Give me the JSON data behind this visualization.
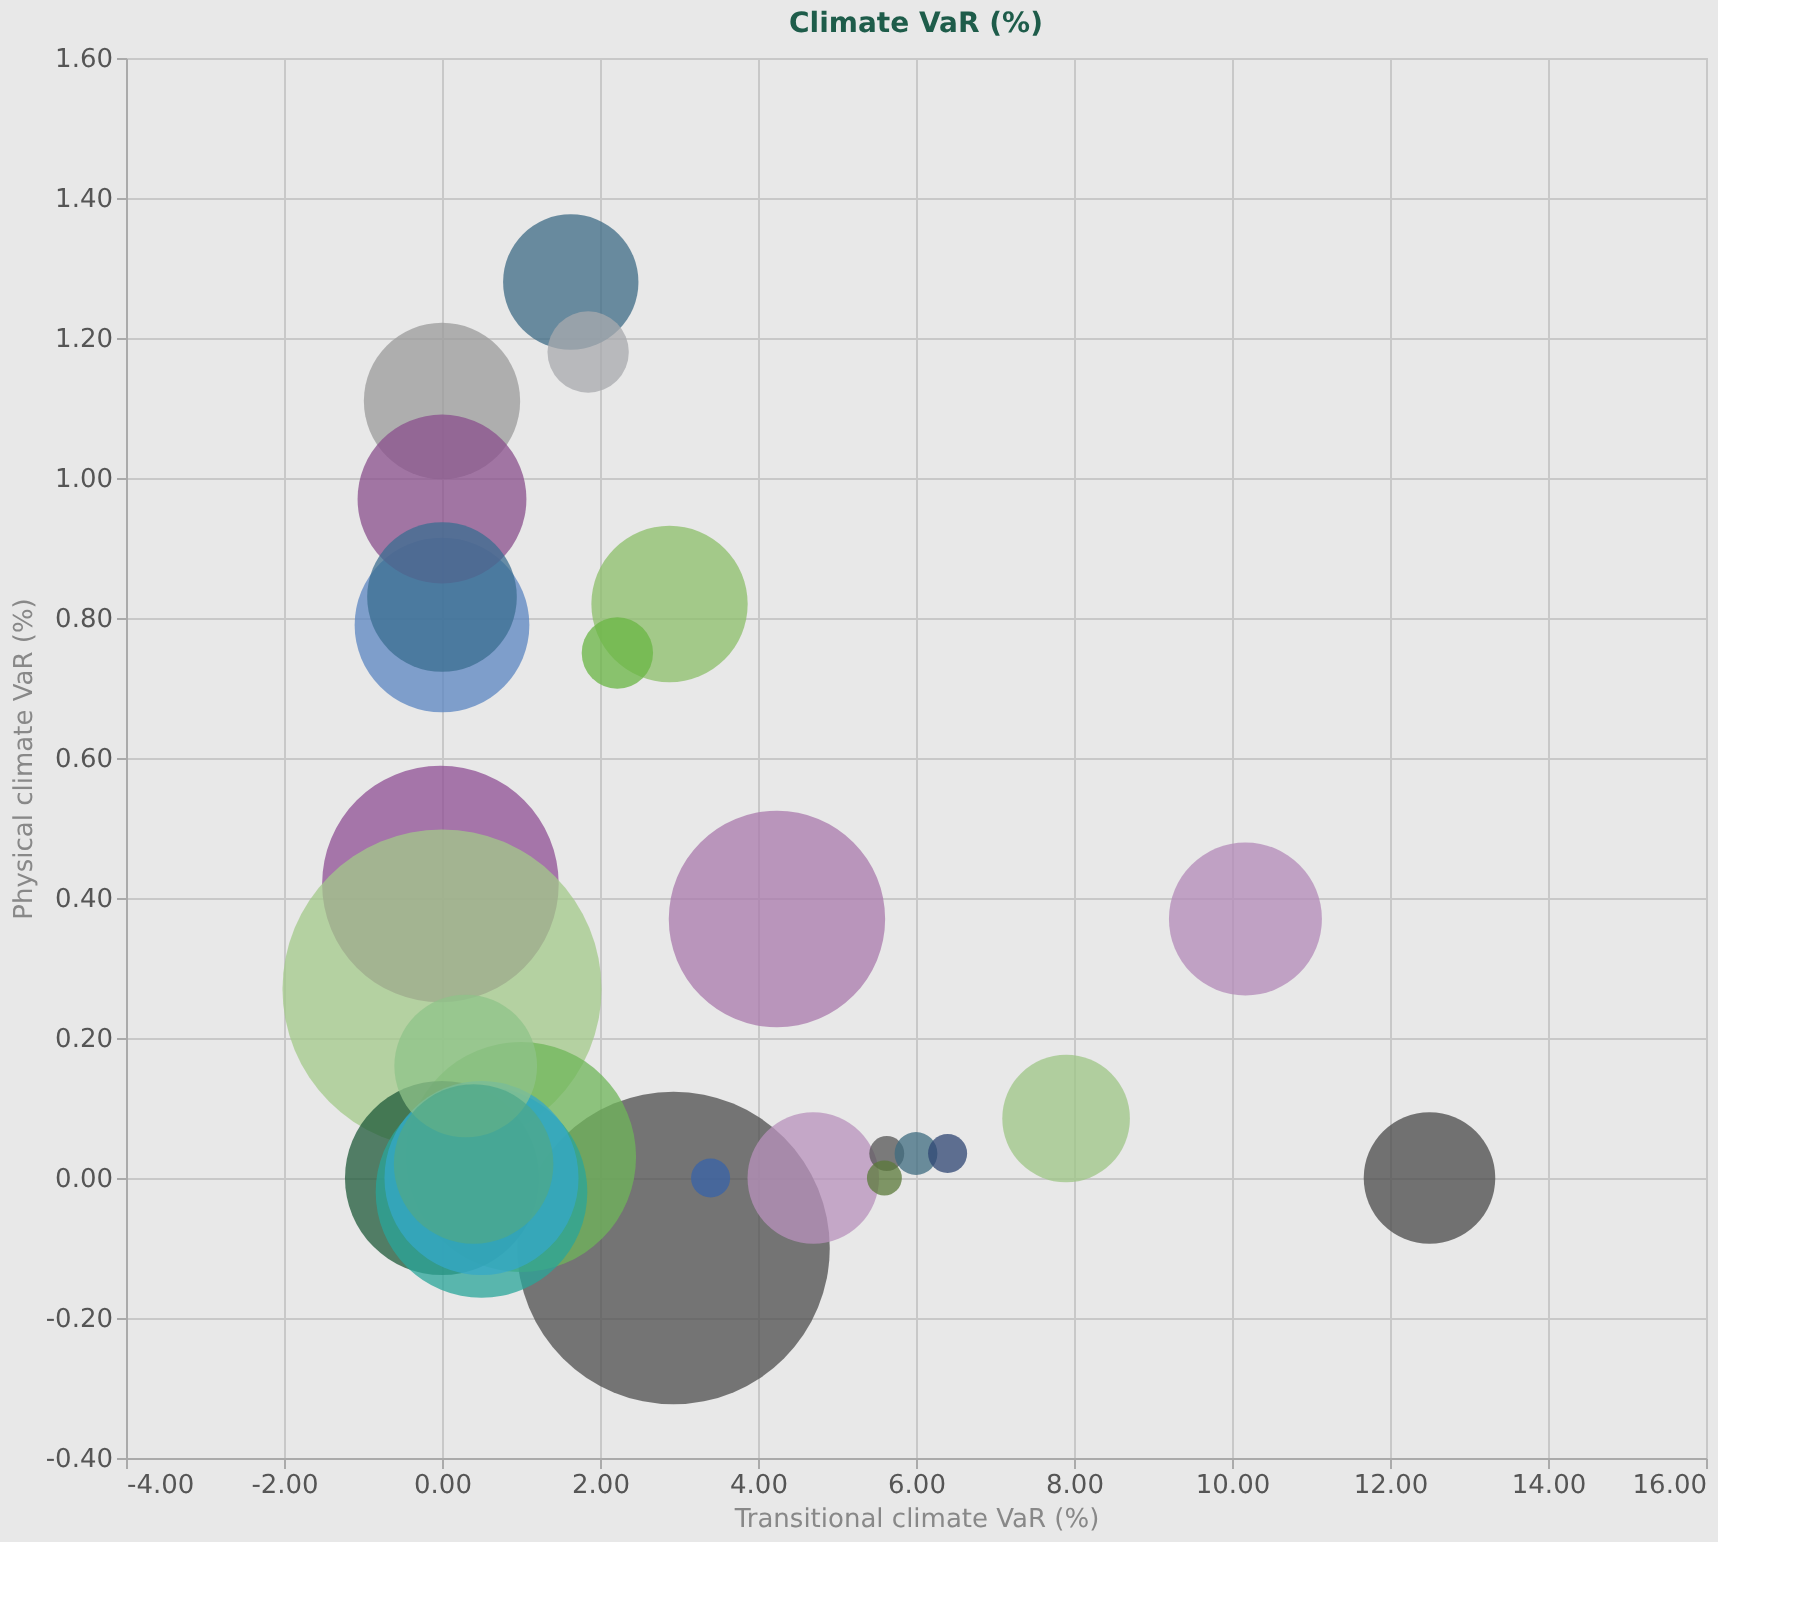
{
  "chart_data": {
    "type": "bubble",
    "title": "Climate VaR (%)",
    "xlabel": "Transitional climate VaR (%)",
    "ylabel": "Physical climate VaR (%)",
    "x": [
      -0.02,
      2.93,
      0.0,
      1.0,
      0.0,
      0.5,
      0.5,
      0.3,
      0.4,
      4.24,
      10.17,
      0.0,
      1.63,
      1.85,
      0.0,
      0.0,
      0.0,
      2.88,
      2.22,
      7.9,
      12.5,
      4.7,
      3.4,
      5.63,
      5.6,
      6.0,
      6.4
    ],
    "values": [
      0.42,
      -0.1,
      0.27,
      0.03,
      0.0,
      -0.02,
      0.0,
      0.16,
      0.02,
      0.37,
      0.37,
      0.79,
      1.28,
      1.18,
      1.11,
      0.97,
      0.83,
      0.82,
      0.75,
      0.085,
      0.0,
      0.0,
      0.0,
      0.035,
      0.0,
      0.035,
      0.035
    ],
    "sizes": [
      0.55,
      0.96,
      1.0,
      0.52,
      0.37,
      0.44,
      0.37,
      0.2,
      0.25,
      0.46,
      0.23,
      0.3,
      0.18,
      0.065,
      0.24,
      0.28,
      0.22,
      0.24,
      0.05,
      0.16,
      0.17,
      0.17,
      0.015,
      0.012,
      0.012,
      0.018,
      0.015
    ],
    "colors": [
      "#8f4f94",
      "#4d4d4d",
      "#a3c98a",
      "#6fb55a",
      "#1f5a3a",
      "#2aa59a",
      "#35a8c8",
      "#8fc38a",
      "#4fa88a",
      "#a97aac",
      "#b389b8",
      "#5b85c2",
      "#3d6b85",
      "#a8aaad",
      "#9b9b9b",
      "#8a4f8c",
      "#3b6d90",
      "#8cbf6a",
      "#6ab544",
      "#9dc685",
      "#4a4a4a",
      "#b892bc",
      "#3863a8",
      "#555555",
      "#5b7a3a",
      "#3f6c80",
      "#2f4673"
    ],
    "xlim": [
      -4,
      16
    ],
    "ylim": [
      -0.4,
      1.6
    ],
    "xticks": [
      {
        "value": -4,
        "label": "-4.00"
      },
      {
        "value": -2,
        "label": "-2.00"
      },
      {
        "value": 0,
        "label": "0.00"
      },
      {
        "value": 2,
        "label": "2.00"
      },
      {
        "value": 4,
        "label": "4.00"
      },
      {
        "value": 6,
        "label": "6.00"
      },
      {
        "value": 8,
        "label": "8.00"
      },
      {
        "value": 10,
        "label": "10.00"
      },
      {
        "value": 12,
        "label": "12.00"
      },
      {
        "value": 14,
        "label": "14.00"
      },
      {
        "value": 16,
        "label": "16.00"
      }
    ],
    "yticks": [
      {
        "value": -0.4,
        "label": "-0.40"
      },
      {
        "value": -0.2,
        "label": "-0.20"
      },
      {
        "value": 0,
        "label": "0.00"
      },
      {
        "value": 0.2,
        "label": "0.20"
      },
      {
        "value": 0.4,
        "label": "0.40"
      },
      {
        "value": 0.6,
        "label": "0.60"
      },
      {
        "value": 0.8,
        "label": "0.80"
      },
      {
        "value": 1.0,
        "label": "1.00"
      },
      {
        "value": 1.2,
        "label": "1.20"
      },
      {
        "value": 1.4,
        "label": "1.40"
      },
      {
        "value": 1.6,
        "label": "1.60"
      }
    ],
    "grid": true,
    "legend": false
  }
}
